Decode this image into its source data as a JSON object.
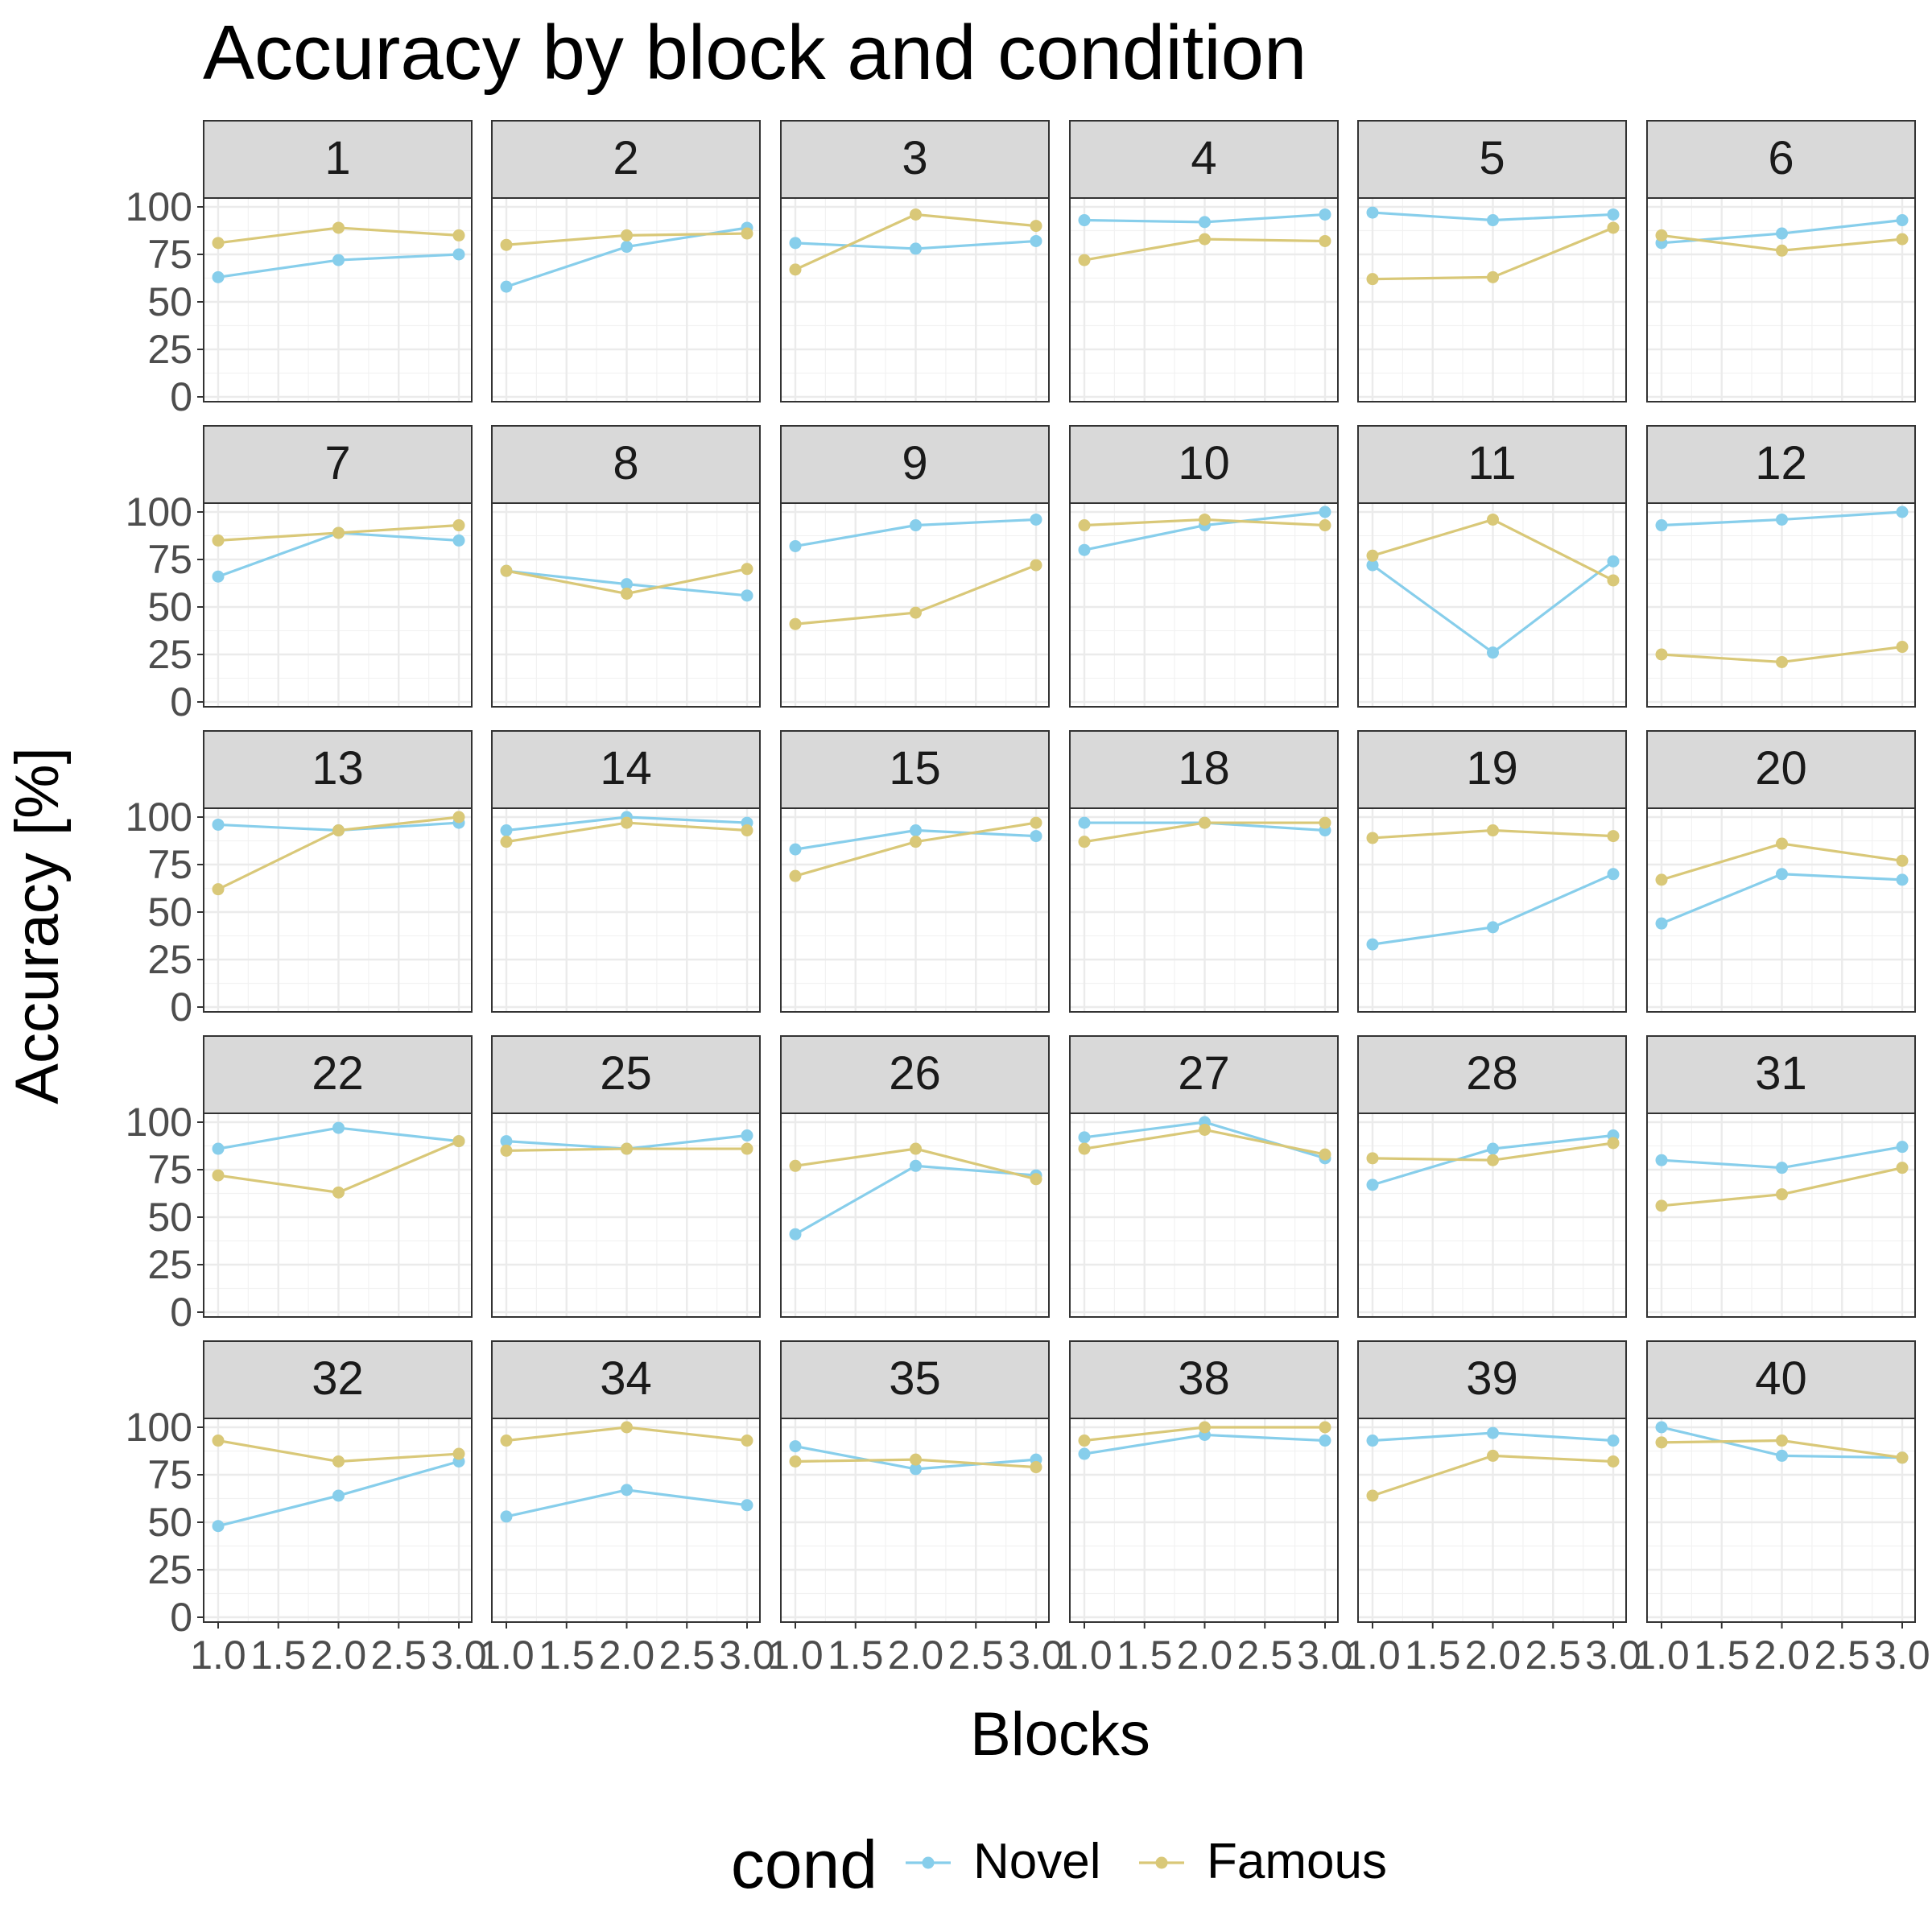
{
  "chart_data": {
    "type": "line",
    "title": "Accuracy by block and condition",
    "xlabel": "Blocks",
    "ylabel": "Accuracy [%]",
    "x": [
      1,
      2,
      3
    ],
    "xlim": [
      1,
      3
    ],
    "ylim": [
      0,
      100
    ],
    "x_ticks": [
      1.0,
      1.5,
      2.0,
      2.5,
      3.0
    ],
    "x_tick_labels": [
      "1.0",
      "1.5",
      "2.0",
      "2.5",
      "3.0"
    ],
    "y_ticks": [
      0,
      25,
      50,
      75,
      100
    ],
    "y_tick_labels": [
      "0",
      "25",
      "50",
      "75",
      "100"
    ],
    "grid": true,
    "legend": {
      "title": "cond",
      "position": "bottom",
      "entries": [
        "Novel",
        "Famous"
      ]
    },
    "colors": {
      "Novel": "#87CEEB",
      "Famous": "#D9C878"
    },
    "facets": [
      {
        "label": "1",
        "Novel": [
          63,
          72,
          75
        ],
        "Famous": [
          81,
          89,
          85
        ]
      },
      {
        "label": "2",
        "Novel": [
          58,
          79,
          89
        ],
        "Famous": [
          80,
          85,
          86
        ]
      },
      {
        "label": "3",
        "Novel": [
          81,
          78,
          82
        ],
        "Famous": [
          67,
          96,
          90
        ]
      },
      {
        "label": "4",
        "Novel": [
          93,
          92,
          96
        ],
        "Famous": [
          72,
          83,
          82
        ]
      },
      {
        "label": "5",
        "Novel": [
          97,
          93,
          96
        ],
        "Famous": [
          62,
          63,
          89
        ]
      },
      {
        "label": "6",
        "Novel": [
          81,
          86,
          93
        ],
        "Famous": [
          85,
          77,
          83
        ]
      },
      {
        "label": "7",
        "Novel": [
          66,
          89,
          85
        ],
        "Famous": [
          85,
          89,
          93
        ]
      },
      {
        "label": "8",
        "Novel": [
          69,
          62,
          56
        ],
        "Famous": [
          69,
          57,
          70
        ]
      },
      {
        "label": "9",
        "Novel": [
          82,
          93,
          96
        ],
        "Famous": [
          41,
          47,
          72
        ]
      },
      {
        "label": "10",
        "Novel": [
          80,
          93,
          100
        ],
        "Famous": [
          93,
          96,
          93
        ]
      },
      {
        "label": "11",
        "Novel": [
          72,
          26,
          74
        ],
        "Famous": [
          77,
          96,
          64
        ]
      },
      {
        "label": "12",
        "Novel": [
          93,
          96,
          100
        ],
        "Famous": [
          25,
          21,
          29
        ]
      },
      {
        "label": "13",
        "Novel": [
          96,
          93,
          97
        ],
        "Famous": [
          62,
          93,
          100
        ]
      },
      {
        "label": "14",
        "Novel": [
          93,
          100,
          97
        ],
        "Famous": [
          87,
          97,
          93
        ]
      },
      {
        "label": "15",
        "Novel": [
          83,
          93,
          90
        ],
        "Famous": [
          69,
          87,
          97
        ]
      },
      {
        "label": "18",
        "Novel": [
          97,
          97,
          93
        ],
        "Famous": [
          87,
          97,
          97
        ]
      },
      {
        "label": "19",
        "Novel": [
          33,
          42,
          70
        ],
        "Famous": [
          89,
          93,
          90
        ]
      },
      {
        "label": "20",
        "Novel": [
          44,
          70,
          67
        ],
        "Famous": [
          67,
          86,
          77
        ]
      },
      {
        "label": "22",
        "Novel": [
          86,
          97,
          90
        ],
        "Famous": [
          72,
          63,
          90
        ]
      },
      {
        "label": "25",
        "Novel": [
          90,
          86,
          93
        ],
        "Famous": [
          85,
          86,
          86
        ]
      },
      {
        "label": "26",
        "Novel": [
          41,
          77,
          72
        ],
        "Famous": [
          77,
          86,
          70
        ]
      },
      {
        "label": "27",
        "Novel": [
          92,
          100,
          81
        ],
        "Famous": [
          86,
          96,
          83
        ]
      },
      {
        "label": "28",
        "Novel": [
          67,
          86,
          93
        ],
        "Famous": [
          81,
          80,
          89
        ]
      },
      {
        "label": "31",
        "Novel": [
          80,
          76,
          87
        ],
        "Famous": [
          56,
          62,
          76
        ]
      },
      {
        "label": "32",
        "Novel": [
          48,
          64,
          82
        ],
        "Famous": [
          93,
          82,
          86
        ]
      },
      {
        "label": "34",
        "Novel": [
          53,
          67,
          59
        ],
        "Famous": [
          93,
          100,
          93
        ]
      },
      {
        "label": "35",
        "Novel": [
          90,
          78,
          83
        ],
        "Famous": [
          82,
          83,
          79
        ]
      },
      {
        "label": "38",
        "Novel": [
          86,
          96,
          93
        ],
        "Famous": [
          93,
          100,
          100
        ]
      },
      {
        "label": "39",
        "Novel": [
          93,
          97,
          93
        ],
        "Famous": [
          64,
          85,
          82
        ]
      },
      {
        "label": "40",
        "Novel": [
          100,
          85,
          84
        ],
        "Famous": [
          92,
          93,
          84
        ]
      }
    ]
  }
}
